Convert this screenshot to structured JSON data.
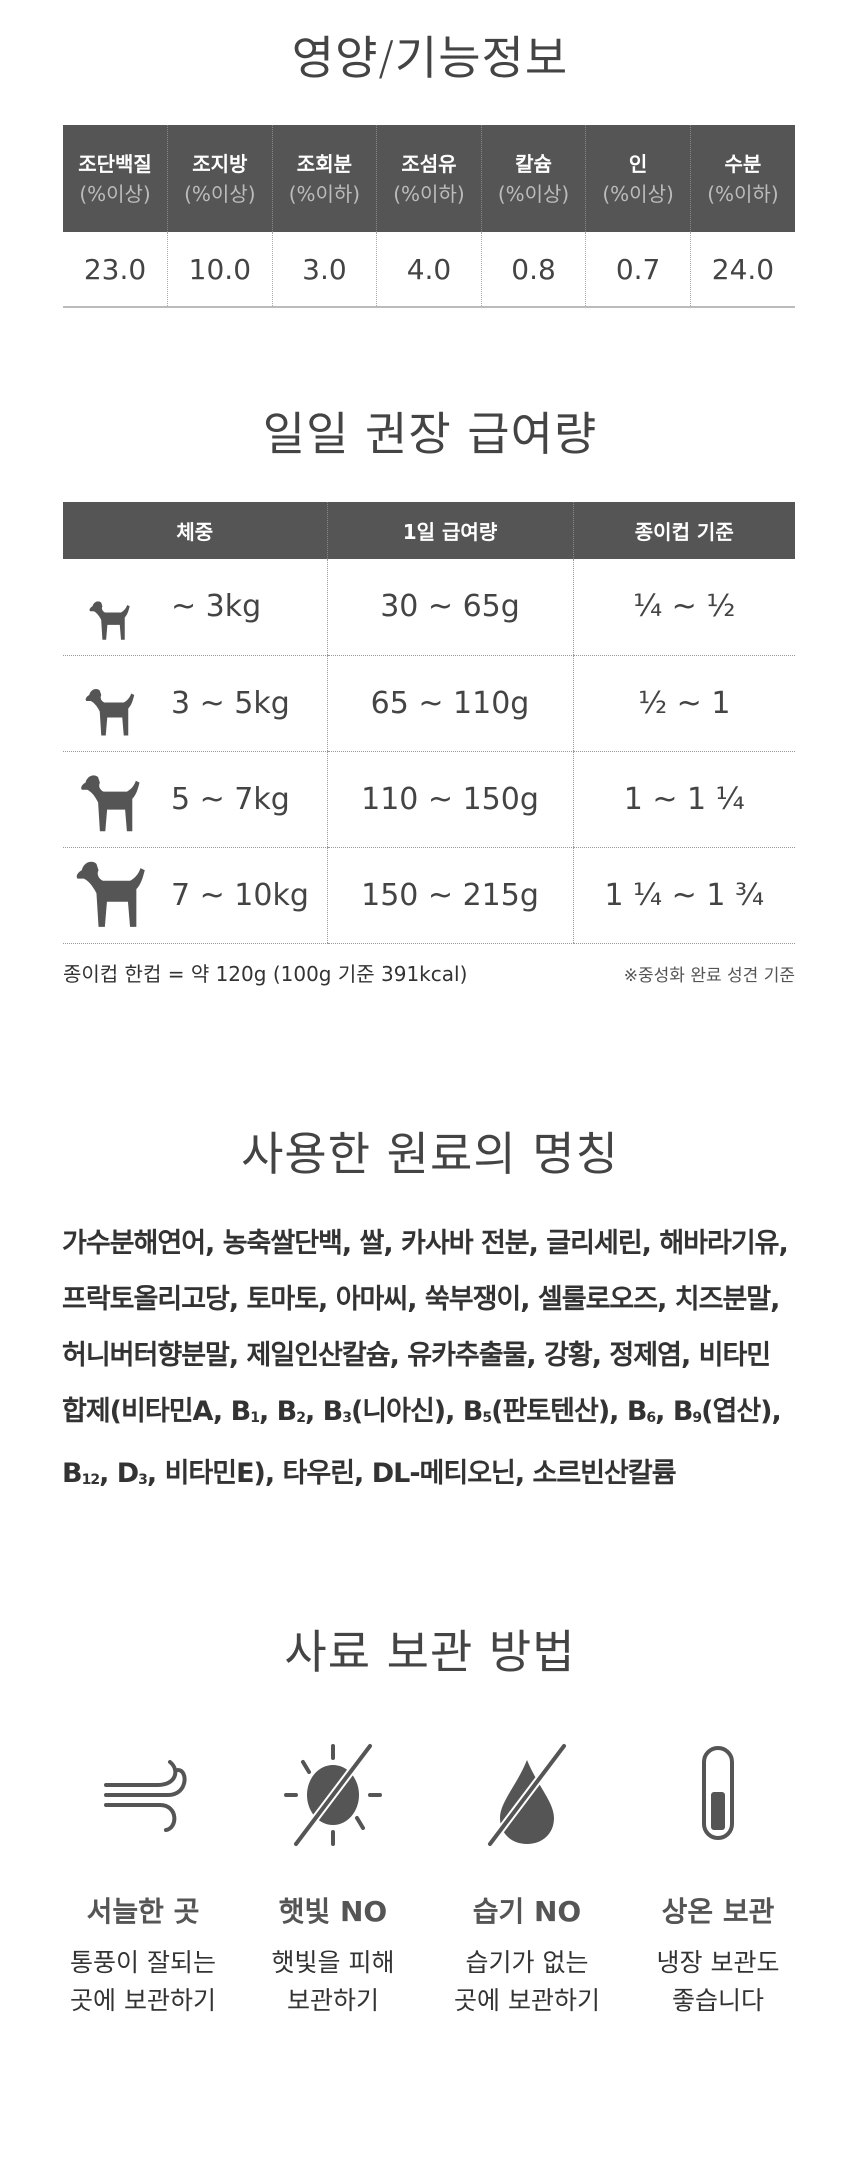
{
  "nutrition": {
    "title": "영양/기능정보",
    "columns": [
      {
        "name": "조단백질",
        "unit": "(%이상)",
        "value": "23.0"
      },
      {
        "name": "조지방",
        "unit": "(%이상)",
        "value": "10.0"
      },
      {
        "name": "조회분",
        "unit": "(%이하)",
        "value": "3.0"
      },
      {
        "name": "조섬유",
        "unit": "(%이하)",
        "value": "4.0"
      },
      {
        "name": "칼슘",
        "unit": "(%이상)",
        "value": "0.8"
      },
      {
        "name": "인",
        "unit": "(%이상)",
        "value": "0.7"
      },
      {
        "name": "수분",
        "unit": "(%이하)",
        "value": "24.0"
      }
    ]
  },
  "feeding": {
    "title": "일일 권장 급여량",
    "headers": [
      "체중",
      "1일 급여량",
      "종이컵 기준"
    ],
    "rows": [
      {
        "icon": "small-dog-icon",
        "weight": "~ 3kg",
        "amount": "30 ~ 65g",
        "cup": "¼ ~ ½"
      },
      {
        "icon": "medium-dog-icon",
        "weight": "3 ~ 5kg",
        "amount": "65 ~ 110g",
        "cup": "½ ~ 1"
      },
      {
        "icon": "large-dog-icon",
        "weight": "5 ~ 7kg",
        "amount": "110 ~ 150g",
        "cup": "1 ~ 1 ¼"
      },
      {
        "icon": "xlarge-dog-icon",
        "weight": "7 ~ 10kg",
        "amount": "150 ~ 215g",
        "cup": "1 ¼ ~ 1 ¾"
      }
    ],
    "note_left": "종이컵 한컵 = 약 120g (100g 기준 391kcal)",
    "note_right": "※중성화 완료 성견 기준"
  },
  "ingredients": {
    "title": "사용한 원료의 명칭",
    "text_a": "가수분해연어, 농축쌀단백, 쌀, 카사바 전분, 글리세린, 해바라기유, 프락토올리고당, 토마토, 아마씨, 쑥부쟁이, 셀룰로오즈, 치즈분말, 허니버터향분말, 제일인산칼슘, 유카추출물, 강황, 정제염, 비타민 합제(비타민A, B",
    "s1": "1",
    "t1": ", B",
    "s2": "2",
    "t2": ", B",
    "s3": "3",
    "t3": "(니아신), B",
    "s5": "5",
    "t5": "(판토텐산), B",
    "s6": "6",
    "t6": ", B",
    "s9": "9",
    "t9": "(엽산), B",
    "s12": "12",
    "t12": ", D",
    "sd3": "3",
    "text_end": ", 비타민E), 타우린, DL-메티오닌, 소르빈산칼륨"
  },
  "storage": {
    "title": "사료 보관 방법",
    "items": [
      {
        "icon": "wind-icon",
        "label": "서늘한 곳",
        "desc1": "통풍이 잘되는",
        "desc2": "곳에 보관하기"
      },
      {
        "icon": "no-sun-icon",
        "label": "햇빛 NO",
        "desc1": "햇빛을 피해",
        "desc2": "보관하기"
      },
      {
        "icon": "no-moisture-icon",
        "label": "습기 NO",
        "desc1": "습기가 없는",
        "desc2": "곳에 보관하기"
      },
      {
        "icon": "thermometer-icon",
        "label": "상온 보관",
        "desc1": "냉장 보관도",
        "desc2": "좋습니다"
      }
    ]
  },
  "colors": {
    "header_bg": "#555555",
    "icon": "#555555",
    "text": "#444444"
  }
}
